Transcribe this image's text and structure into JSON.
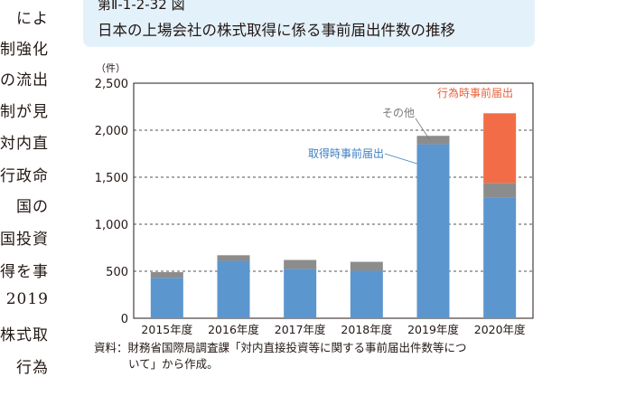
{
  "body_text": [
    "によ",
    "制強化",
    "の流出",
    "制が見",
    "対内直",
    "行政命",
    "国の",
    "国投資",
    "得を事",
    "2019",
    "株式取",
    "行為"
  ],
  "figure": {
    "number": "第Ⅱ-1-2-32 図",
    "title": "日本の上場会社の株式取得に係る事前届出件数の推移"
  },
  "source": {
    "line1": "資料：財務省国際局調査課「対内直接投資等に関する事前届出件数等につ",
    "line2": "いて」から作成。"
  },
  "colors": {
    "acquisition": "#5b96cf",
    "other": "#8c8c8c",
    "act": "#f26d47",
    "title_bg": "#e3f1fa"
  },
  "chart_data": {
    "type": "bar",
    "stacked": true,
    "categories": [
      "2015年度",
      "2016年度",
      "2017年度",
      "2018年度",
      "2019年度",
      "2020年度"
    ],
    "series": [
      {
        "name": "取得時事前届出",
        "values": [
          430,
          610,
          525,
          505,
          1850,
          1280
        ],
        "color": "#5b96cf"
      },
      {
        "name": "その他",
        "values": [
          60,
          60,
          95,
          95,
          90,
          160
        ],
        "color": "#8c8c8c"
      },
      {
        "name": "行為時事前届出",
        "values": [
          0,
          0,
          0,
          0,
          0,
          740
        ],
        "color": "#f26d47"
      }
    ],
    "ylim": [
      0,
      2500
    ],
    "yticks": [
      0,
      500,
      1000,
      1500,
      2000,
      2500
    ],
    "ytick_labels": [
      "0",
      "500",
      "1,000",
      "1,500",
      "2,000",
      "2,500"
    ],
    "yunit": "（件）",
    "grid": "dashed",
    "annotations": [
      "行為時事前届出",
      "その他",
      "取得時事前届出"
    ]
  }
}
